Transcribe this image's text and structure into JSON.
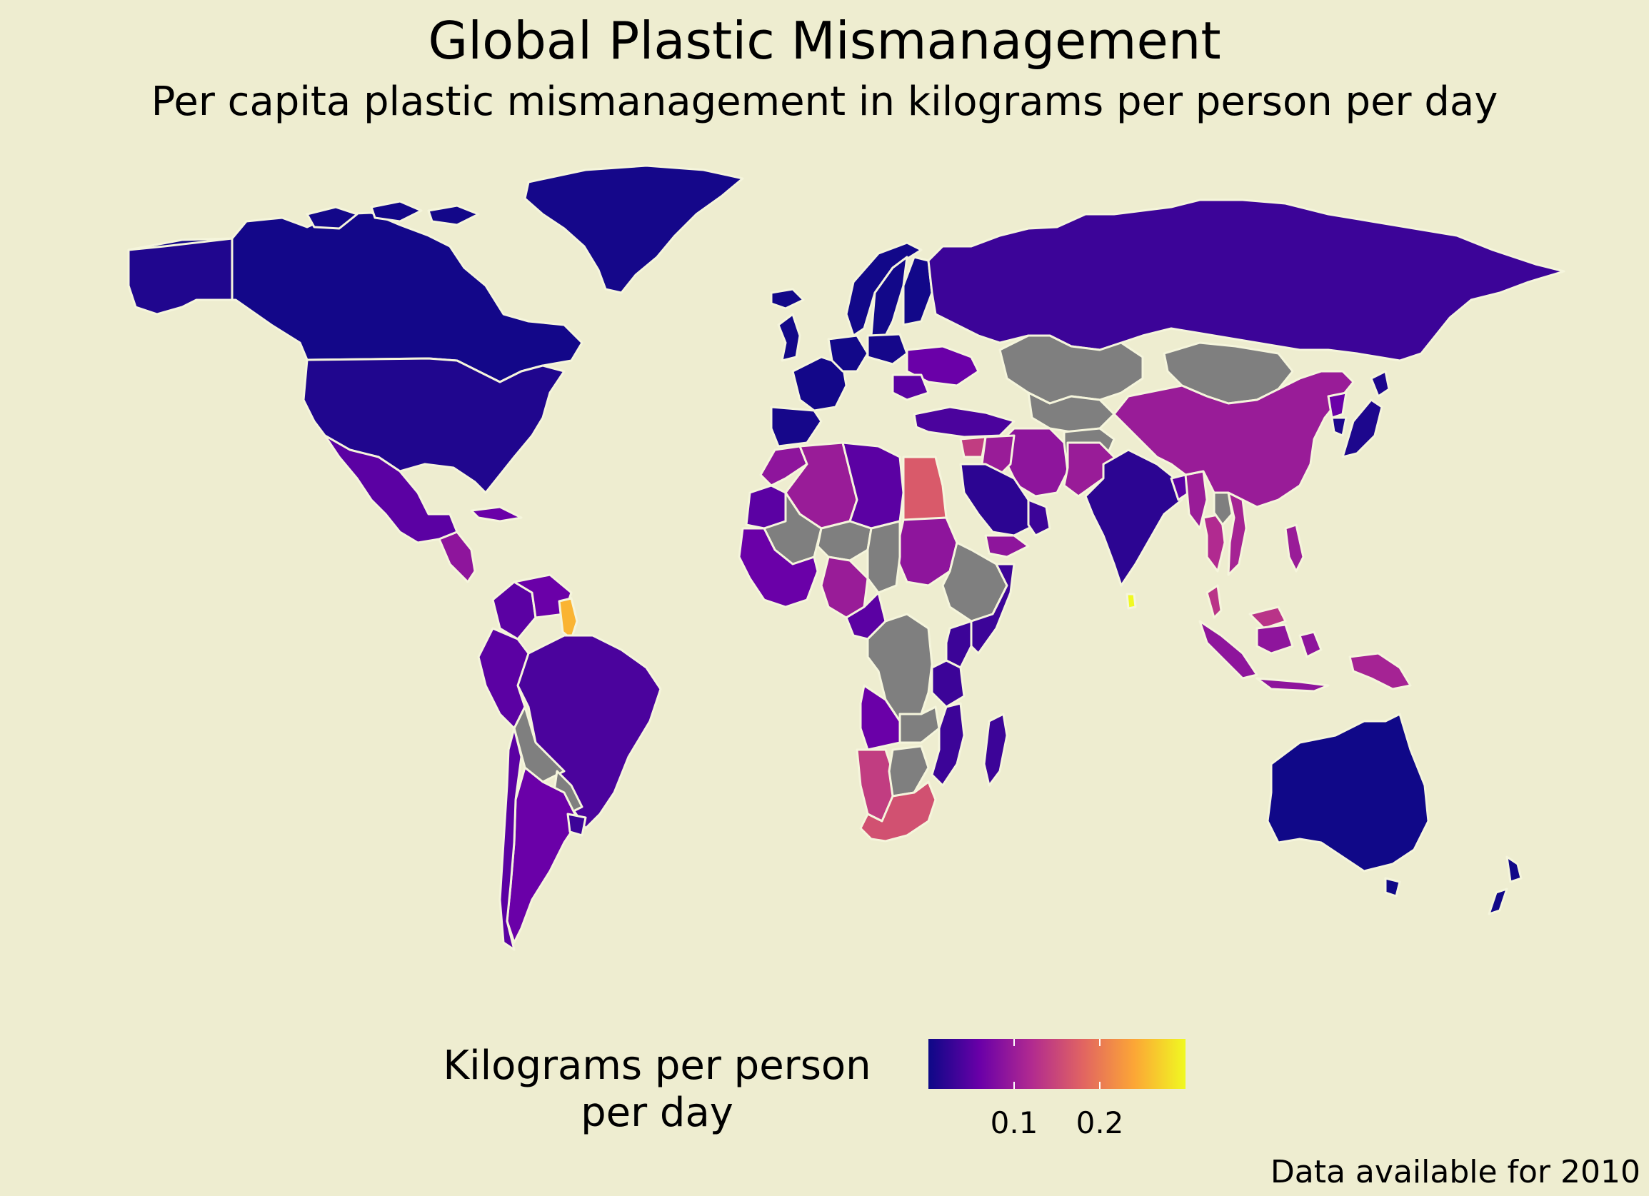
{
  "title": "Global Plastic Mismanagement",
  "subtitle": "Per capita plastic mismanagement in kilograms per person per day",
  "caption": "Data available for 2010",
  "colors": {
    "background": "#eeedd0",
    "border": "#f5f5dc",
    "no_data": "#7f7f7f",
    "scale": [
      "#0d0887",
      "#6a00a8",
      "#b12a90",
      "#e16462",
      "#fca636",
      "#f0f921"
    ]
  },
  "legend": {
    "title_line1": "Kilograms per person",
    "title_line2": "per day",
    "min": 0,
    "max": 0.3,
    "ticks": [
      {
        "value": 0.1,
        "label": "0.1"
      },
      {
        "value": 0.2,
        "label": "0.2"
      }
    ]
  },
  "chart_data": {
    "type": "choropleth",
    "title": "Global Plastic Mismanagement",
    "subtitle": "Per capita plastic mismanagement in kilograms per person per day",
    "legend_title": "Kilograms per person per day",
    "legend_placement": "bottom",
    "scale": "plasma",
    "regions": [
      {
        "name": "Greenland",
        "value": 0.005
      },
      {
        "name": "Canada",
        "value": 0.004
      },
      {
        "name": "United States",
        "value": 0.012
      },
      {
        "name": "Mexico",
        "value": 0.05
      },
      {
        "name": "Central America",
        "value": 0.09
      },
      {
        "name": "Cuba",
        "value": 0.06
      },
      {
        "name": "Colombia",
        "value": 0.05
      },
      {
        "name": "Venezuela",
        "value": 0.06
      },
      {
        "name": "Guyana",
        "value": 0.25
      },
      {
        "name": "Brazil",
        "value": 0.04
      },
      {
        "name": "Peru",
        "value": 0.05
      },
      {
        "name": "Bolivia",
        "value": null
      },
      {
        "name": "Paraguay",
        "value": null
      },
      {
        "name": "Argentina",
        "value": 0.06
      },
      {
        "name": "Chile",
        "value": 0.05
      },
      {
        "name": "Uruguay",
        "value": 0.03
      },
      {
        "name": "Iceland",
        "value": 0.003
      },
      {
        "name": "Norway",
        "value": 0.003
      },
      {
        "name": "Sweden",
        "value": 0.003
      },
      {
        "name": "Finland",
        "value": 0.003
      },
      {
        "name": "Russia",
        "value": 0.03
      },
      {
        "name": "United Kingdom",
        "value": 0.003
      },
      {
        "name": "France",
        "value": 0.004
      },
      {
        "name": "Spain",
        "value": 0.006
      },
      {
        "name": "Germany",
        "value": 0.003
      },
      {
        "name": "Poland",
        "value": 0.005
      },
      {
        "name": "Ukraine",
        "value": 0.06
      },
      {
        "name": "Romania",
        "value": 0.05
      },
      {
        "name": "Turkey",
        "value": 0.04
      },
      {
        "name": "Kazakhstan",
        "value": null
      },
      {
        "name": "Mongolia",
        "value": null
      },
      {
        "name": "Central Asia",
        "value": null
      },
      {
        "name": "Afghanistan",
        "value": null
      },
      {
        "name": "Iran",
        "value": 0.09
      },
      {
        "name": "Iraq",
        "value": 0.1
      },
      {
        "name": "Syria",
        "value": 0.14
      },
      {
        "name": "Saudi Arabia",
        "value": 0.02
      },
      {
        "name": "Yemen",
        "value": 0.09
      },
      {
        "name": "Oman",
        "value": 0.03
      },
      {
        "name": "Pakistan",
        "value": 0.1
      },
      {
        "name": "India",
        "value": 0.02
      },
      {
        "name": "Sri Lanka",
        "value": 0.3
      },
      {
        "name": "Bangladesh",
        "value": 0.05
      },
      {
        "name": "Myanmar",
        "value": 0.1
      },
      {
        "name": "Thailand",
        "value": 0.12
      },
      {
        "name": "Vietnam",
        "value": 0.11
      },
      {
        "name": "Laos",
        "value": null
      },
      {
        "name": "Malaysia",
        "value": 0.13
      },
      {
        "name": "Indonesia",
        "value": 0.09
      },
      {
        "name": "Philippines",
        "value": 0.1
      },
      {
        "name": "Papua New Guinea",
        "value": 0.11
      },
      {
        "name": "China",
        "value": 0.1
      },
      {
        "name": "North Korea",
        "value": 0.06
      },
      {
        "name": "South Korea",
        "value": 0.01
      },
      {
        "name": "Japan",
        "value": 0.01
      },
      {
        "name": "Australia",
        "value": 0.002
      },
      {
        "name": "New Zealand",
        "value": 0.003
      },
      {
        "name": "Morocco",
        "value": 0.09
      },
      {
        "name": "Algeria",
        "value": 0.1
      },
      {
        "name": "Libya",
        "value": 0.05
      },
      {
        "name": "Egypt",
        "value": 0.17
      },
      {
        "name": "Sudan",
        "value": 0.09
      },
      {
        "name": "Mauritania",
        "value": 0.05
      },
      {
        "name": "Mali",
        "value": null
      },
      {
        "name": "Niger",
        "value": null
      },
      {
        "name": "Chad",
        "value": null
      },
      {
        "name": "Ethiopia",
        "value": null
      },
      {
        "name": "Somalia",
        "value": 0.03
      },
      {
        "name": "Nigeria",
        "value": 0.1
      },
      {
        "name": "West Africa",
        "value": 0.06
      },
      {
        "name": "Cameroon",
        "value": 0.05
      },
      {
        "name": "DR Congo",
        "value": null
      },
      {
        "name": "Kenya",
        "value": 0.03
      },
      {
        "name": "Tanzania",
        "value": 0.03
      },
      {
        "name": "Angola",
        "value": 0.06
      },
      {
        "name": "Zambia",
        "value": null
      },
      {
        "name": "Mozambique",
        "value": 0.03
      },
      {
        "name": "Madagascar",
        "value": 0.03
      },
      {
        "name": "Namibia",
        "value": 0.14
      },
      {
        "name": "Botswana",
        "value": null
      },
      {
        "name": "South Africa",
        "value": 0.16
      }
    ]
  }
}
